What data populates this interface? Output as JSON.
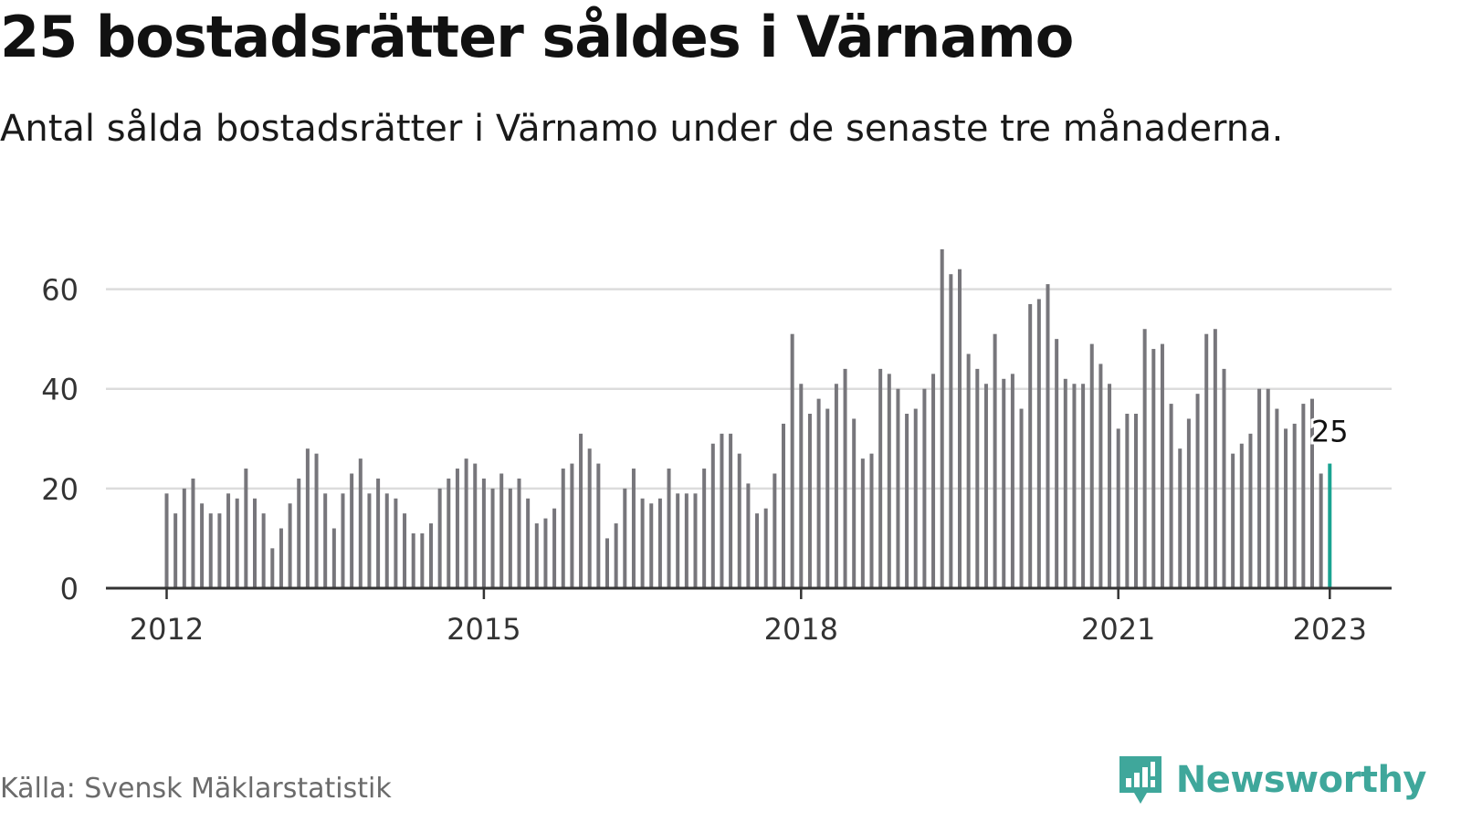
{
  "title": "25 bostadsrätter såldes i Värnamo",
  "subtitle": "Antal sålda bostadsrätter i Värnamo under de senaste tre månaderna.",
  "source": "Källa: Svensk Mäklarstatistik",
  "brand": {
    "name": "Newsworthy",
    "color": "#3fa79b"
  },
  "colors": {
    "bar": "#77767b",
    "highlight": "#1aa391",
    "grid": "#dcdcdc",
    "axis": "#333333",
    "tick_text": "#333333"
  },
  "chart_data": {
    "type": "bar",
    "x_start": "2012-01",
    "interval": "month",
    "ylim": [
      0,
      70
    ],
    "yticks": [
      "0",
      "20",
      "40",
      "60"
    ],
    "xticks": [
      {
        "label": "2012",
        "date": "2012-01"
      },
      {
        "label": "2015",
        "date": "2015-01"
      },
      {
        "label": "2018",
        "date": "2018-01"
      },
      {
        "label": "2021",
        "date": "2021-01"
      },
      {
        "label": "2023",
        "date": "2023-01"
      }
    ],
    "grid": true,
    "values": [
      19,
      15,
      20,
      22,
      17,
      15,
      15,
      19,
      18,
      24,
      18,
      15,
      8,
      12,
      17,
      22,
      28,
      27,
      19,
      12,
      19,
      23,
      26,
      19,
      22,
      19,
      18,
      15,
      11,
      11,
      13,
      20,
      22,
      24,
      26,
      25,
      22,
      20,
      23,
      20,
      22,
      18,
      13,
      14,
      16,
      24,
      25,
      31,
      28,
      25,
      10,
      13,
      20,
      24,
      18,
      17,
      18,
      24,
      19,
      19,
      19,
      24,
      29,
      31,
      31,
      27,
      21,
      15,
      16,
      23,
      33,
      51,
      41,
      35,
      38,
      36,
      41,
      44,
      34,
      26,
      27,
      44,
      43,
      40,
      35,
      36,
      40,
      43,
      68,
      63,
      64,
      47,
      44,
      41,
      51,
      42,
      43,
      36,
      57,
      58,
      61,
      50,
      42,
      41,
      41,
      49,
      45,
      41,
      32,
      35,
      35,
      52,
      48,
      49,
      37,
      28,
      34,
      39,
      51,
      52,
      44,
      27,
      29,
      31,
      40,
      40,
      36,
      32,
      33,
      37,
      38,
      23,
      25
    ],
    "highlight": {
      "date": "2023-01",
      "value": 25,
      "label": "25"
    }
  }
}
